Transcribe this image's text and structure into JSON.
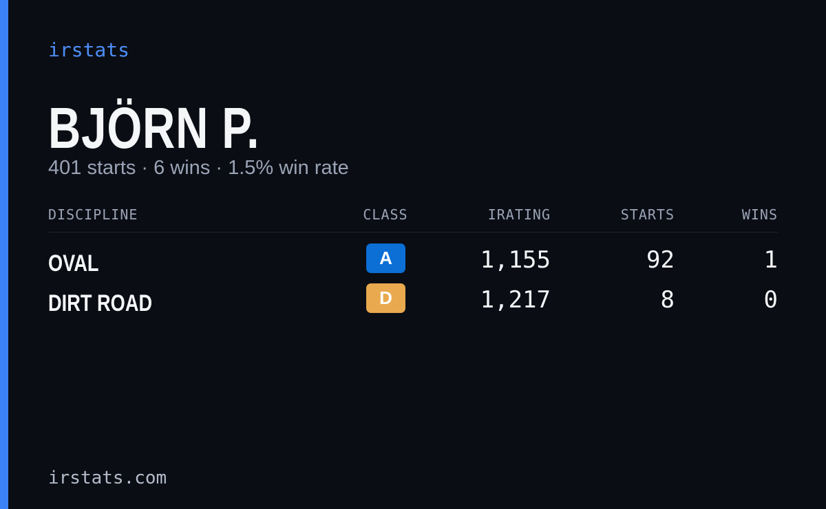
{
  "brand": "irstats",
  "player": {
    "name": "BJÖRN P.",
    "summary": "401 starts · 6 wins · 1.5% win rate"
  },
  "table": {
    "headers": [
      "DISCIPLINE",
      "CLASS",
      "IRATING",
      "STARTS",
      "WINS"
    ],
    "rows": [
      [
        "OVAL",
        "A",
        "1,155",
        "92",
        "1"
      ],
      [
        "DIRT ROAD",
        "D",
        "1,217",
        "8",
        "0"
      ]
    ]
  },
  "footer": "irstats.com"
}
